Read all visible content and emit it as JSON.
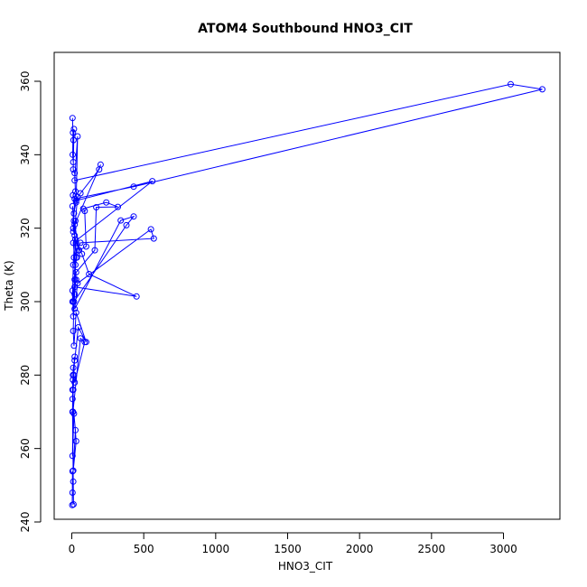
{
  "chart_data": {
    "type": "line",
    "title": "ATOM4 Southbound HNO3_CIT",
    "xlabel": "HNO3_CIT",
    "ylabel": "Theta (K)",
    "xlim": [
      0,
      3300
    ],
    "ylim": [
      240,
      366
    ],
    "x_ticks": [
      0,
      500,
      1000,
      1500,
      2000,
      2500,
      3000
    ],
    "y_ticks": [
      240,
      260,
      280,
      300,
      320,
      340,
      360
    ],
    "markers": "open-circle",
    "grid": false,
    "legend": "none",
    "color": "#0000ff",
    "series": [
      {
        "x": [
          5,
          8,
          6,
          10,
          12,
          15,
          10,
          20,
          25,
          8,
          30,
          40,
          20,
          3050,
          3270,
          430,
          20,
          10,
          30,
          50,
          15,
          5,
          20,
          35,
          25,
          10,
          560,
          30,
          15,
          10,
          20,
          200,
          190,
          60,
          40,
          25,
          10,
          5,
          20,
          30,
          50,
          100,
          90,
          80,
          240,
          320,
          170,
          160,
          30,
          20,
          10,
          5,
          15,
          380,
          430,
          340,
          20,
          40,
          550,
          570,
          60,
          15,
          30,
          8,
          20,
          450,
          120,
          70,
          25,
          10,
          15,
          30,
          100,
          45,
          20,
          10,
          5,
          8,
          60,
          90,
          20,
          15,
          8,
          5,
          25,
          10,
          30,
          15,
          5,
          10,
          20,
          8,
          5,
          12,
          10,
          5,
          3,
          5
        ],
        "y": [
          350,
          346,
          340,
          338,
          344,
          347,
          336,
          335,
          330,
          329,
          327,
          345,
          333,
          359.2,
          357.8,
          331.3,
          328,
          320,
          316,
          314,
          322,
          326,
          318,
          312,
          310,
          316,
          332.8,
          327.5,
          324,
          319,
          321,
          337.3,
          336,
          329.5,
          328.5,
          322,
          310,
          300,
          306,
          312,
          314,
          315,
          324.7,
          325.3,
          327,
          325.8,
          325.7,
          314,
          308,
          302,
          296,
          303,
          300,
          320.8,
          323.2,
          322.1,
          298,
          305,
          319.7,
          317.2,
          316,
          312,
          306,
          300,
          304,
          301.4,
          307.5,
          313,
          317,
          292,
          288,
          297,
          289,
          293,
          284,
          282,
          276,
          270,
          290,
          289,
          278,
          280,
          278.7,
          273.5,
          265,
          254,
          262,
          269.5,
          258,
          276,
          285,
          280,
          270,
          244.8,
          251,
          253.8,
          244.6,
          248
        ]
      }
    ]
  }
}
